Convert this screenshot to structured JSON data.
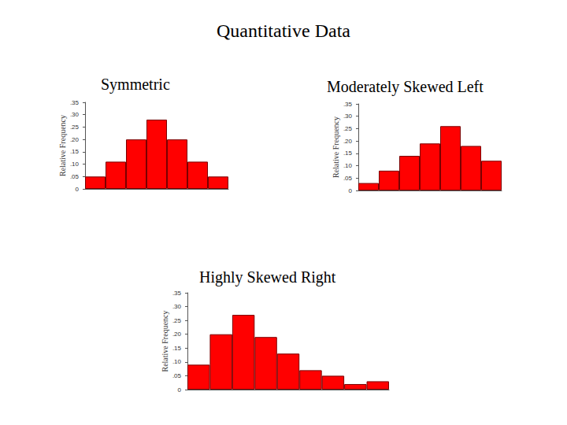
{
  "title": "Quantitative Data",
  "chart_data": [
    {
      "type": "bar",
      "title": "Symmetric",
      "ylabel": "Relative Frequency",
      "categories": [
        null,
        null,
        null,
        null,
        null,
        null,
        null
      ],
      "values": [
        0.05,
        0.11,
        0.2,
        0.28,
        0.2,
        0.11,
        0.05
      ],
      "color": "#ff0000",
      "ylim": [
        0,
        0.35
      ],
      "yticks": [
        0,
        {
          "value": 0.05,
          "label": ".05"
        },
        {
          "value": 0.1,
          "label": ".10"
        },
        {
          "value": 0.15,
          "label": ".15"
        },
        {
          "value": 0.2,
          "label": ".20"
        },
        {
          "value": 0.25,
          "label": ".25"
        },
        {
          "value": 0.3,
          "label": ".30"
        },
        {
          "value": 0.35,
          "label": ".35"
        }
      ],
      "grid": false,
      "tick_labels": "y"
    },
    {
      "type": "bar",
      "title": "Moderately Skewed Left",
      "ylabel": "Relative Frequency",
      "categories": [
        null,
        null,
        null,
        null,
        null,
        null,
        null
      ],
      "values": [
        0.03,
        0.08,
        0.14,
        0.19,
        0.26,
        0.18,
        0.12
      ],
      "color": "#ff0000",
      "ylim": [
        0,
        0.35
      ],
      "yticks": [
        0,
        {
          "value": 0.05,
          "label": ".05"
        },
        {
          "value": 0.1,
          "label": ".10"
        },
        {
          "value": 0.15,
          "label": ".15"
        },
        {
          "value": 0.2,
          "label": ".20"
        },
        {
          "value": 0.25,
          "label": ".25"
        },
        {
          "value": 0.3,
          "label": ".30"
        },
        {
          "value": 0.35,
          "label": ".35"
        }
      ],
      "grid": false,
      "tick_labels": "y"
    },
    {
      "type": "bar",
      "title": "Highly Skewed Right",
      "ylabel": "Relative Frequency",
      "categories": [
        null,
        null,
        null,
        null,
        null,
        null,
        null,
        null,
        null
      ],
      "values": [
        0.09,
        0.2,
        0.27,
        0.19,
        0.13,
        0.07,
        0.05,
        0.02,
        0.03
      ],
      "color": "#ff0000",
      "ylim": [
        0,
        0.35
      ],
      "yticks": [
        0,
        {
          "value": 0.05,
          "label": ".05"
        },
        {
          "value": 0.1,
          "label": ".10"
        },
        {
          "value": 0.15,
          "label": ".15"
        },
        {
          "value": 0.2,
          "label": ".20"
        },
        {
          "value": 0.25,
          "label": ".25"
        },
        {
          "value": 0.3,
          "label": ".30"
        },
        {
          "value": 0.35,
          "label": ".35"
        }
      ],
      "grid": false,
      "tick_labels": "y"
    }
  ]
}
